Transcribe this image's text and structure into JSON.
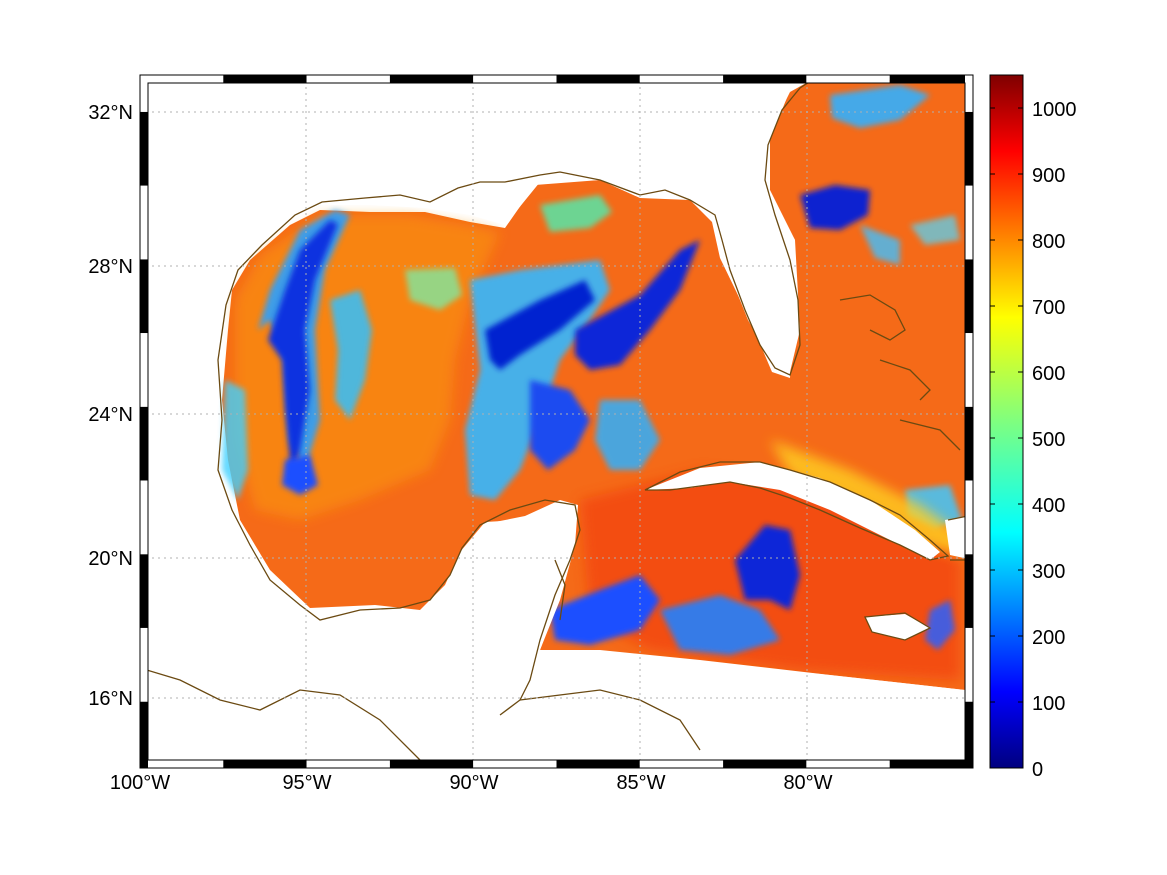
{
  "chart_data": {
    "type": "heatmap",
    "map_region": "Gulf of Mexico and Caribbean",
    "lon_range": [
      -100,
      -75
    ],
    "lat_range": [
      14.2,
      33
    ],
    "x_ticks": [
      "100°W",
      "95°W",
      "90°W",
      "85°W",
      "80°W"
    ],
    "y_ticks": [
      "16°N",
      "20°N",
      "24°N",
      "28°N",
      "32°N"
    ],
    "grid": true,
    "grid_style": "dotted",
    "colormap": "jet",
    "colorbar": {
      "min": 0,
      "max": 1050,
      "ticks": [
        "0",
        "100",
        "200",
        "300",
        "400",
        "500",
        "600",
        "700",
        "800",
        "900",
        "1000"
      ],
      "placement": "right"
    },
    "background_level": 820,
    "low_value_features": [
      {
        "region": "western Gulf bands near 95-96°W",
        "value_range": [
          150,
          450
        ]
      },
      {
        "region": "central Gulf streaks near 87-90°W",
        "value_range": [
          50,
          400
        ]
      },
      {
        "region": "northern Gulf near 84-86°W",
        "value_range": [
          100,
          350
        ]
      },
      {
        "region": "Atlantic east of Florida near 30°N",
        "value_range": [
          50,
          250
        ]
      },
      {
        "region": "northwestern Caribbean south of Cuba",
        "value_range": [
          50,
          350
        ]
      }
    ],
    "high_value_features": [
      {
        "region": "Yucatan channel / central Caribbean",
        "value_range": [
          900,
          950
        ]
      },
      {
        "region": "along Cuba southeast coast",
        "value_range": [
          650,
          750
        ]
      }
    ],
    "colors": {
      "coastline": "#6b4a12",
      "frame": "#000000",
      "grid": "#b0b0b0"
    }
  }
}
